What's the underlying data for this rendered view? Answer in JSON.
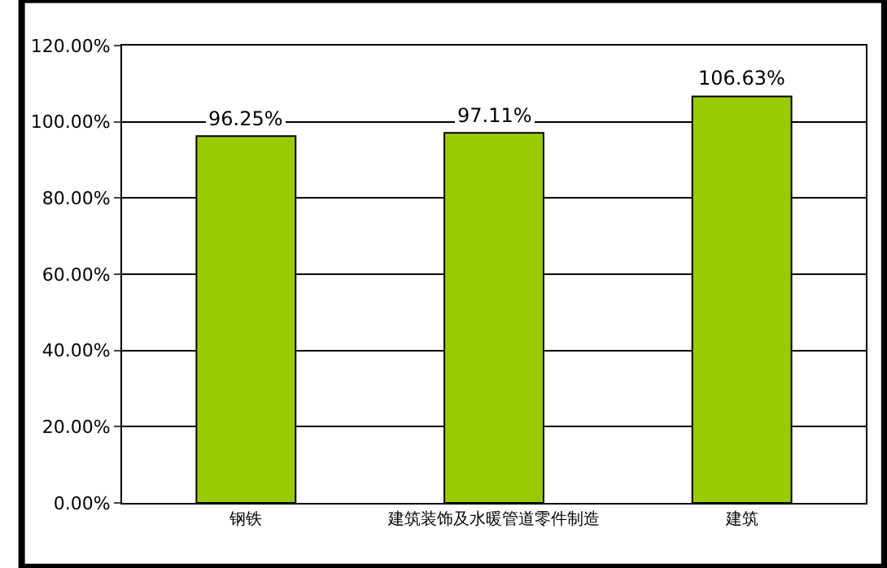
{
  "chart_data": {
    "type": "bar",
    "categories": [
      "钢铁",
      "建筑装饰及水暖管道零件制造",
      "建筑"
    ],
    "values": [
      96.25,
      97.11,
      106.63
    ],
    "color": "#99cc00",
    "value_labels": [
      "96.25%",
      "97.11%",
      "106.63%"
    ],
    "ylim": [
      0,
      120
    ],
    "yticks": [
      {
        "value": 0,
        "label": "0.00%"
      },
      {
        "value": 20,
        "label": "20.00%"
      },
      {
        "value": 40,
        "label": "40.00%"
      },
      {
        "value": 60,
        "label": "60.00%"
      },
      {
        "value": 80,
        "label": "80.00%"
      },
      {
        "value": 100,
        "label": "100.00%"
      },
      {
        "value": 120,
        "label": "120.00%"
      }
    ],
    "grid": "y",
    "legend": false
  }
}
